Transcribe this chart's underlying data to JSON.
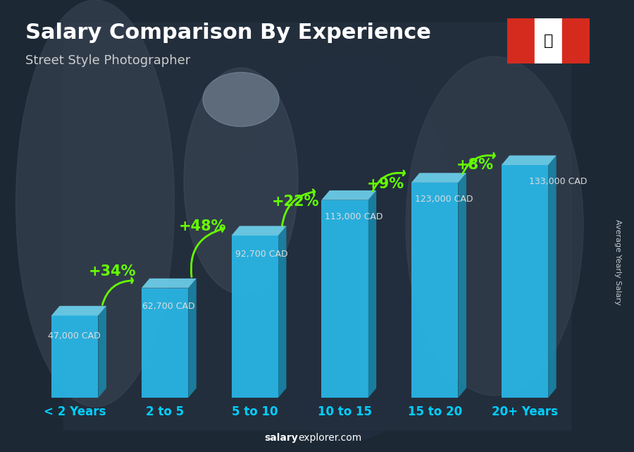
{
  "title": "Salary Comparison By Experience",
  "subtitle": "Street Style Photographer",
  "categories": [
    "< 2 Years",
    "2 to 5",
    "5 to 10",
    "10 to 15",
    "15 to 20",
    "20+ Years"
  ],
  "values": [
    47000,
    62700,
    92700,
    113000,
    123000,
    133000
  ],
  "salary_labels": [
    "47,000 CAD",
    "62,700 CAD",
    "92,700 CAD",
    "113,000 CAD",
    "123,000 CAD",
    "133,000 CAD"
  ],
  "pct_changes": [
    "+34%",
    "+48%",
    "+22%",
    "+9%",
    "+8%"
  ],
  "bar_face_color": "#29b8e8",
  "bar_side_color": "#1a85a8",
  "bar_top_color": "#70d8f5",
  "bg_color": "#2d3e50",
  "title_color": "#ffffff",
  "subtitle_color": "#cccccc",
  "salary_label_color": "#dddddd",
  "pct_color": "#66ff00",
  "tick_color": "#00cfff",
  "ylabel": "Average Yearly Salary",
  "source_bold": "salary",
  "source_rest": "explorer.com",
  "ylim": [
    0,
    155000
  ],
  "title_fontsize": 22,
  "subtitle_fontsize": 13,
  "tick_fontsize": 12,
  "pct_fontsize": 15
}
